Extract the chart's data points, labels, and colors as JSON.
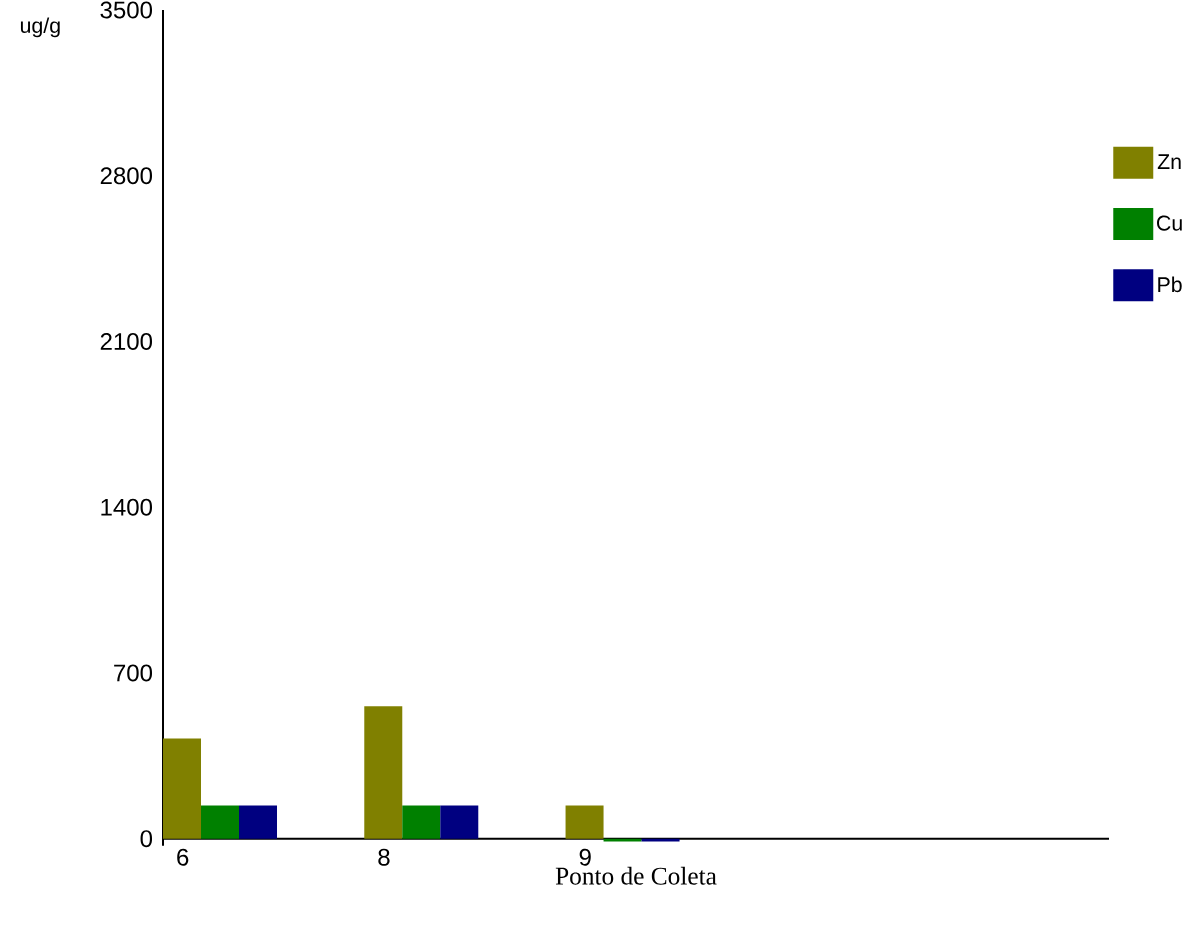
{
  "chart_data": {
    "type": "bar",
    "xlabel": "Ponto de Coleta",
    "ylabel": "ug/g",
    "categories": [
      "6",
      "8",
      "9",
      null,
      null
    ],
    "series": [
      {
        "name": "Zn",
        "color": "#808000",
        "values": [
          423,
          559,
          140,
          null,
          null
        ]
      },
      {
        "name": "Cu",
        "color": "#008000",
        "values": [
          140,
          140,
          -12,
          null,
          null
        ]
      },
      {
        "name": "Pb",
        "color": "#000080",
        "values": [
          140,
          140,
          -12,
          0,
          null
        ]
      }
    ],
    "ylim": [
      -30,
      3500
    ],
    "yticks": [
      0,
      700,
      1400,
      2100,
      2800,
      3500
    ],
    "grid": false,
    "legend": "right"
  }
}
